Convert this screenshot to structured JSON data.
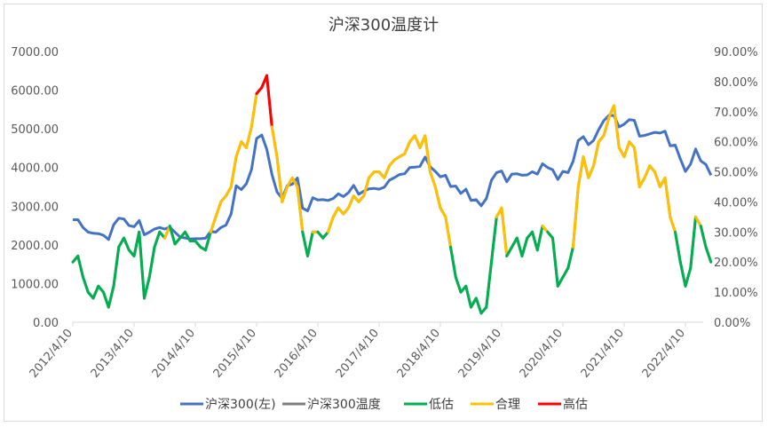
{
  "chart_data": {
    "type": "line",
    "title": "沪深300温度计",
    "start": "2012-04",
    "frequency": "monthly",
    "left_axis": {
      "ylim": [
        0,
        7000
      ],
      "ticks": [
        "0.00",
        "1000.00",
        "2000.00",
        "3000.00",
        "4000.00",
        "5000.00",
        "6000.00",
        "7000.00"
      ]
    },
    "right_axis": {
      "ylim": [
        0,
        90
      ],
      "ticks": [
        "0.00%",
        "10.00%",
        "20.00%",
        "30.00%",
        "40.00%",
        "50.00%",
        "60.00%",
        "70.00%",
        "80.00%",
        "90.00%"
      ]
    },
    "x_ticks": [
      "2012/4/10",
      "2013/4/10",
      "2014/4/10",
      "2015/4/10",
      "2016/4/10",
      "2017/4/10",
      "2018/4/10",
      "2019/4/10",
      "2020/4/10",
      "2021/4/10",
      "2022/4/10"
    ],
    "thresholds": {
      "low_below": 30,
      "high_above": 72
    },
    "legend": [
      "沪深300(左)",
      "沪深300温度",
      "低估",
      "合理",
      "高估"
    ],
    "legend_position": "bottom",
    "colors": {
      "index": "#4472c4",
      "temp": "#7f7f7f",
      "low": "#00b050",
      "mid": "#ffc000",
      "high": "#ff0000"
    },
    "series": [
      {
        "name": "沪深300(左)",
        "axis": "left",
        "values": [
          2650,
          2650,
          2450,
          2330,
          2300,
          2290,
          2250,
          2140,
          2520,
          2690,
          2670,
          2500,
          2470,
          2630,
          2260,
          2330,
          2410,
          2450,
          2410,
          2460,
          2330,
          2200,
          2180,
          2150,
          2160,
          2160,
          2170,
          2350,
          2330,
          2450,
          2510,
          2800,
          3530,
          3430,
          3580,
          3950,
          4750,
          4840,
          4470,
          3820,
          3370,
          3200,
          3530,
          3570,
          3730,
          2950,
          2880,
          3220,
          3160,
          3170,
          3150,
          3200,
          3320,
          3250,
          3350,
          3540,
          3310,
          3390,
          3450,
          3460,
          3440,
          3490,
          3670,
          3740,
          3820,
          3840,
          4000,
          4010,
          4030,
          4270,
          4020,
          3900,
          3760,
          3800,
          3510,
          3520,
          3330,
          3440,
          3150,
          3170,
          3010,
          3200,
          3670,
          3870,
          3910,
          3630,
          3830,
          3840,
          3800,
          3810,
          3890,
          3830,
          4100,
          4000,
          3940,
          3690,
          3900,
          3870,
          4160,
          4700,
          4800,
          4590,
          4700,
          4980,
          5210,
          5350,
          5340,
          5050,
          5120,
          5240,
          5220,
          4810,
          4830,
          4870,
          4910,
          4890,
          4940,
          4560,
          4580,
          4220,
          3900,
          4090,
          4480,
          4170,
          4080,
          3800
        ]
      },
      {
        "name": "沪深300温度",
        "axis": "right",
        "values": [
          20,
          22,
          15,
          10,
          8,
          12,
          10,
          5,
          12,
          25,
          28,
          24,
          22,
          30,
          8,
          15,
          25,
          30,
          28,
          32,
          26,
          28,
          30,
          27,
          27,
          25,
          24,
          30,
          35,
          40,
          42,
          45,
          55,
          60,
          58,
          65,
          76,
          78,
          82,
          65,
          55,
          40,
          45,
          48,
          45,
          30,
          22,
          30,
          30,
          28,
          30,
          35,
          38,
          36,
          38,
          42,
          40,
          42,
          48,
          50,
          50,
          48,
          52,
          54,
          55,
          56,
          60,
          62,
          58,
          62,
          50,
          45,
          38,
          35,
          25,
          15,
          10,
          12,
          5,
          8,
          3,
          5,
          20,
          35,
          38,
          22,
          25,
          28,
          22,
          28,
          30,
          24,
          32,
          30,
          28,
          12,
          15,
          18,
          25,
          45,
          55,
          48,
          52,
          60,
          62,
          68,
          72,
          58,
          55,
          60,
          58,
          45,
          48,
          52,
          50,
          45,
          48,
          35,
          30,
          20,
          12,
          18,
          35,
          32,
          25,
          20
        ]
      }
    ]
  }
}
